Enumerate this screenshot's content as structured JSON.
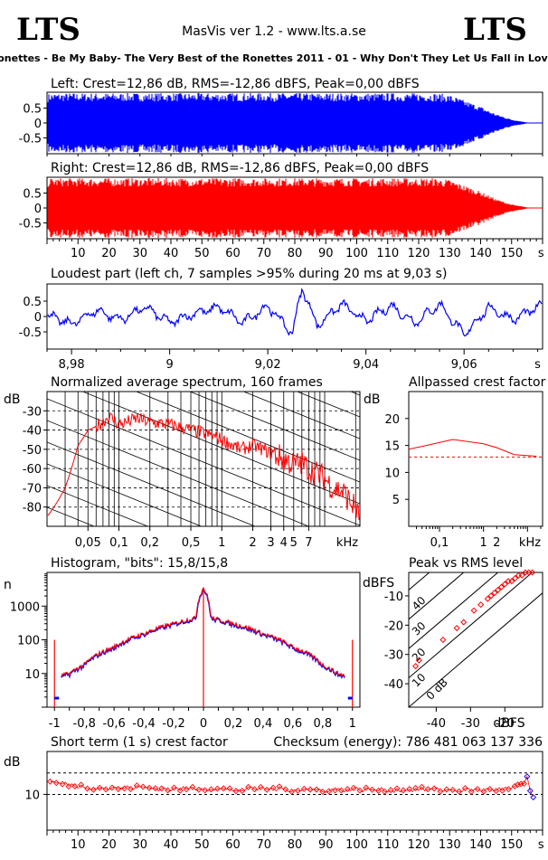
{
  "header": {
    "logo_left": "LTS",
    "logo_right": "LTS",
    "app_title": "MasVis ver 1.2 - www.lts.a.se",
    "track_title": "Ronettes - Be My Baby- The Very Best of the Ronettes 2011 - 01 - Why Don't They Let Us Fall in Love."
  },
  "colors": {
    "left": "#0000ff",
    "right": "#ff0000",
    "axis": "#000000"
  },
  "chart_data": [
    {
      "id": "left_waveform",
      "type": "area",
      "title": "Left: Crest=12,86 dB, RMS=-12,86 dBFS, Peak=0,00 dBFS",
      "yticks": [
        "0.5",
        "0",
        "-0.5"
      ],
      "ylim": [
        -1,
        1
      ],
      "xlim": [
        0,
        160
      ],
      "envelope_x": [
        0,
        1,
        3,
        8,
        20,
        60,
        100,
        125,
        130,
        135,
        140,
        145,
        150,
        155,
        157
      ],
      "envelope_y": [
        0.95,
        1,
        1,
        1,
        1,
        1,
        1,
        1,
        0.95,
        0.75,
        0.55,
        0.3,
        0.12,
        0.02,
        0
      ]
    },
    {
      "id": "right_waveform",
      "type": "area",
      "title": "Right: Crest=12,86 dB, RMS=-12,86 dBFS, Peak=0,00 dBFS",
      "yticks": [
        "0.5",
        "0",
        "-0.5"
      ],
      "ylim": [
        -1,
        1
      ],
      "xlim": [
        0,
        160
      ],
      "xticks": [
        "10",
        "20",
        "30",
        "40",
        "50",
        "60",
        "70",
        "80",
        "90",
        "100",
        "110",
        "120",
        "130",
        "140",
        "150",
        "s"
      ],
      "envelope_x": [
        0,
        1,
        3,
        8,
        20,
        60,
        100,
        125,
        130,
        135,
        140,
        145,
        150,
        155,
        157
      ],
      "envelope_y": [
        0.95,
        1,
        1,
        1,
        1,
        1,
        1,
        1,
        0.95,
        0.75,
        0.55,
        0.3,
        0.12,
        0.02,
        0
      ]
    },
    {
      "id": "loudest_part",
      "type": "line",
      "title": "Loudest part (left  ch, 7 samples >95% during 20 ms at 9,03 s)",
      "yticks": [
        "0.5",
        "0",
        "-0.5"
      ],
      "xticks": [
        "8,98",
        "9",
        "9,02",
        "9,04",
        "9,06",
        "s"
      ],
      "xlim": [
        8.975,
        9.076
      ],
      "ylim": [
        -1,
        1
      ],
      "x": [
        8.975,
        8.98,
        8.985,
        8.99,
        8.995,
        9.0,
        9.005,
        9.01,
        9.015,
        9.02,
        9.025,
        9.027,
        9.03,
        9.035,
        9.04,
        9.045,
        9.05,
        9.055,
        9.06,
        9.065,
        9.07,
        9.075
      ],
      "y": [
        0.05,
        -0.25,
        0.2,
        -0.1,
        0.3,
        -0.2,
        0.1,
        0.3,
        -0.2,
        0.35,
        -0.55,
        0.95,
        -0.3,
        0.4,
        -0.15,
        0.35,
        -0.2,
        0.4,
        -0.6,
        0.3,
        -0.1,
        0.3
      ]
    },
    {
      "id": "spectrum",
      "type": "line",
      "title": "Normalized average spectrum, 160 frames",
      "ylabel": "dB",
      "yticks": [
        "-30",
        "-40",
        "-50",
        "-60",
        "-70",
        "-80"
      ],
      "xticks": [
        "0,05",
        "0,1",
        "0,2",
        "0,5",
        "1",
        "2",
        "3",
        "4",
        "5",
        "7",
        "kHz"
      ],
      "xlim_khz": [
        0.02,
        22
      ],
      "ylim": [
        -90,
        -20
      ],
      "x": [
        0.02,
        0.03,
        0.04,
        0.05,
        0.06,
        0.08,
        0.1,
        0.15,
        0.2,
        0.3,
        0.5,
        0.7,
        1,
        1.5,
        2,
        3,
        4,
        5,
        6,
        7,
        8,
        10,
        12,
        15,
        18,
        20,
        22
      ],
      "y": [
        -85,
        -70,
        -48,
        -40,
        -38,
        -33,
        -37,
        -34,
        -36,
        -37,
        -40,
        -42,
        -45,
        -50,
        -48,
        -52,
        -55,
        -58,
        -57,
        -60,
        -62,
        -65,
        -70,
        -72,
        -78,
        -80,
        -88
      ]
    },
    {
      "id": "allpassed_crest",
      "type": "line",
      "title": "Allpassed crest factor",
      "ylabel": "dB",
      "yticks": [
        "20",
        "15",
        "10",
        "5"
      ],
      "xticks": [
        "0,1",
        "1",
        "2",
        "kHz"
      ],
      "ylim": [
        0,
        25
      ],
      "x": [
        0.02,
        0.05,
        0.2,
        1,
        2,
        5,
        16
      ],
      "y": [
        14.3,
        15.0,
        16.1,
        15.3,
        14.6,
        13.3,
        13.0
      ],
      "reference_dashed": 12.86
    },
    {
      "id": "histogram",
      "type": "line",
      "title": "Histogram, \"bits\": 15,8/15,8",
      "ylabel": "n",
      "yticks": [
        "1000",
        "100",
        "10"
      ],
      "xticks": [
        "-1",
        "-0,8",
        "-0,6",
        "-0,4",
        "-0,2",
        "0",
        "0,2",
        "0,4",
        "0,6",
        "0,8",
        "1"
      ],
      "xlim": [
        -1.05,
        1.05
      ],
      "ylim_log10": [
        0,
        4
      ],
      "x": [
        -1.0,
        -0.98,
        -0.9,
        -0.8,
        -0.6,
        -0.4,
        -0.2,
        -0.05,
        0,
        0.05,
        0.2,
        0.4,
        0.6,
        0.8,
        0.9,
        0.98,
        1.0
      ],
      "y": [
        100,
        8,
        10,
        18,
        60,
        150,
        300,
        450,
        3500,
        450,
        300,
        150,
        60,
        18,
        10,
        8,
        100
      ]
    },
    {
      "id": "peak_vs_rms",
      "type": "scatter",
      "title": "Peak vs RMS level",
      "ylabel": "dBFS",
      "xlabel": "dBFS",
      "yticks": [
        "-10",
        "-20",
        "-30",
        "-40"
      ],
      "xticks": [
        "-40",
        "-30",
        "-20"
      ],
      "diag_labels": [
        "40",
        "30",
        "20",
        "10",
        "0 dB"
      ],
      "xlim": [
        -48,
        -9
      ],
      "ylim": [
        -48,
        -2
      ],
      "x": [
        -46,
        -45,
        -38,
        -34,
        -32,
        -29,
        -27,
        -25,
        -24,
        -23,
        -22,
        -21,
        -20,
        -19,
        -18,
        -17,
        -16,
        -15,
        -14,
        -13,
        -12
      ],
      "y": [
        -34,
        -32,
        -25,
        -21,
        -19,
        -15,
        -13,
        -11,
        -10,
        -9,
        -8,
        -7,
        -6,
        -5,
        -5,
        -4,
        -3,
        -3,
        -2,
        -2,
        -2
      ]
    },
    {
      "id": "short_term_crest",
      "type": "line",
      "title": "Short term (1 s) crest factor",
      "checksum": "Checksum (energy):   786 481 063 137 336",
      "ylabel": "dB",
      "yticks": [
        "10"
      ],
      "xticks": [
        "10",
        "20",
        "30",
        "40",
        "50",
        "60",
        "70",
        "80",
        "90",
        "100",
        "110",
        "120",
        "130",
        "140",
        "150",
        "s"
      ],
      "xlim": [
        0,
        160
      ],
      "ylim": [
        5,
        16
      ],
      "x": [
        1,
        10,
        20,
        30,
        40,
        50,
        60,
        70,
        80,
        90,
        100,
        110,
        120,
        130,
        140,
        150,
        154,
        155,
        156,
        157
      ],
      "y": [
        11.7,
        11.2,
        10.8,
        11.0,
        10.7,
        10.9,
        10.6,
        10.8,
        10.7,
        10.6,
        10.7,
        10.6,
        10.7,
        10.6,
        10.6,
        10.8,
        11.5,
        12.5,
        10.5,
        9.6
      ]
    }
  ]
}
